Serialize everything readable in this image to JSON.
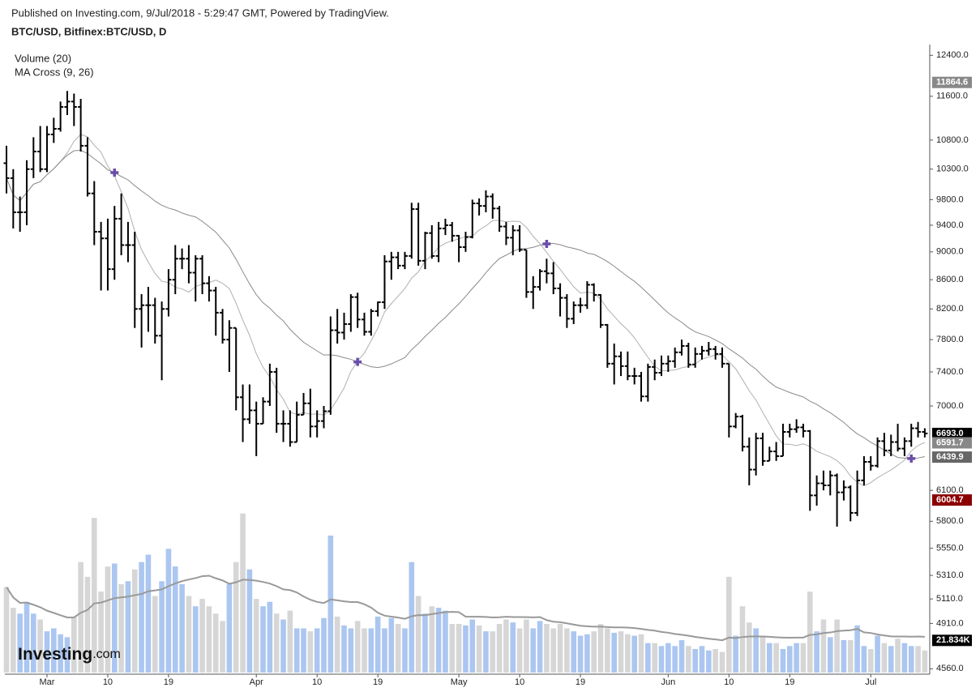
{
  "header": {
    "published": "Published on Investing.com, 9/Jul/2018 - 5:29:47 GMT, Powered by TradingView.",
    "symbol": "BTC/USD, Bitfinex:BTC/USD, D"
  },
  "logo": {
    "main": "Investing",
    "suffix": ".com"
  },
  "chart_data": {
    "type": "ohlc",
    "indicators": [
      "Volume (20)",
      "MA Cross (9, 26)"
    ],
    "log_scale": true,
    "ylim": [
      4520,
      12620
    ],
    "yticks": [
      {
        "value": 12400,
        "label": "12400.0"
      },
      {
        "value": 11600,
        "label": "11600.0"
      },
      {
        "value": 10800,
        "label": "10800.0"
      },
      {
        "value": 10300,
        "label": "10300.0"
      },
      {
        "value": 9800,
        "label": "9800.0"
      },
      {
        "value": 9400,
        "label": "9400.0"
      },
      {
        "value": 9000,
        "label": "9000.0"
      },
      {
        "value": 8600,
        "label": "8600.0"
      },
      {
        "value": 8200,
        "label": "8200.0"
      },
      {
        "value": 7800,
        "label": "7800.0"
      },
      {
        "value": 7400,
        "label": "7400.0"
      },
      {
        "value": 7000,
        "label": "7000.0"
      },
      {
        "value": 6100,
        "label": "6100.0"
      },
      {
        "value": 5800,
        "label": "5800.0"
      },
      {
        "value": 5550,
        "label": "5550.0"
      },
      {
        "value": 5310,
        "label": "5310.0"
      },
      {
        "value": 5110,
        "label": "5110.0"
      },
      {
        "value": 4910,
        "label": "4910.0"
      },
      {
        "value": 4560,
        "label": "4560.0"
      }
    ],
    "vlim": [
      0,
      110000
    ],
    "price_labels": [
      {
        "value": 11864.6,
        "label": "11864.6",
        "color": "#888888"
      },
      {
        "value": 6693.0,
        "label": "6693.0",
        "color": "#000000"
      },
      {
        "value": 6591.7,
        "label": "6591.7",
        "color": "#888888"
      },
      {
        "value": 6439.9,
        "label": "6439.9",
        "color": "#666666"
      },
      {
        "value": 6004.7,
        "label": "6004.7",
        "color": "#8b0000"
      }
    ],
    "volume_label": {
      "value": 21834,
      "label": "21.834K",
      "color": "#000000"
    },
    "ma_periods": [
      9,
      26
    ],
    "volume_ma_period": 20,
    "bar_color": "#000000",
    "ma_color": "#999999",
    "cross_color": "#6a4ea8",
    "up_volume_color": "#abc6f0",
    "down_volume_color": "#d6d6d6",
    "categories": [
      null,
      null,
      null,
      null,
      null,
      null,
      "Mar",
      null,
      null,
      null,
      null,
      null,
      null,
      null,
      null,
      "10",
      null,
      null,
      null,
      null,
      null,
      null,
      null,
      null,
      "19",
      null,
      null,
      null,
      null,
      null,
      null,
      null,
      null,
      null,
      null,
      null,
      null,
      "Apr",
      null,
      null,
      null,
      null,
      null,
      null,
      null,
      null,
      "10",
      null,
      null,
      null,
      null,
      null,
      null,
      null,
      null,
      "19",
      null,
      null,
      null,
      null,
      null,
      null,
      null,
      null,
      null,
      null,
      null,
      "May",
      null,
      null,
      null,
      null,
      null,
      null,
      null,
      null,
      "10",
      null,
      null,
      null,
      null,
      null,
      null,
      null,
      null,
      "19",
      null,
      null,
      null,
      null,
      null,
      null,
      null,
      null,
      null,
      null,
      null,
      null,
      "Jun",
      null,
      null,
      null,
      null,
      null,
      null,
      null,
      null,
      "10",
      null,
      null,
      null,
      null,
      null,
      null,
      null,
      null,
      "19",
      null,
      null,
      null,
      null,
      null,
      null,
      null,
      null,
      null,
      null,
      null,
      "Jul",
      null,
      null,
      null,
      null,
      null,
      null,
      null,
      null
    ],
    "open": [
      10400,
      10150,
      9600,
      9600,
      10300,
      10600,
      10300,
      10900,
      11000,
      11400,
      11500,
      11400,
      10700,
      9900,
      9300,
      9200,
      8750,
      9500,
      9100,
      9100,
      8200,
      8250,
      8250,
      7850,
      8200,
      8600,
      8900,
      8900,
      8700,
      8900,
      8550,
      8450,
      8150,
      7800,
      7950,
      7100,
      6850,
      6950,
      6800,
      7050,
      7400,
      6800,
      6800,
      6600,
      6900,
      7030,
      6770,
      6830,
      6940,
      7920,
      7890,
      8000,
      8360,
      8060,
      7900,
      8170,
      8290,
      8860,
      8920,
      8800,
      8940,
      9650,
      8870,
      9280,
      8940,
      9350,
      9400,
      9240,
      9070,
      9220,
      9740,
      9700,
      9850,
      9660,
      9380,
      9210,
      9320,
      9030,
      8430,
      8500,
      8720,
      8690,
      8480,
      8350,
      8070,
      8250,
      8250,
      8530,
      8390,
      7990,
      7500,
      7590,
      7470,
      7350,
      7350,
      7110,
      7460,
      7390,
      7500,
      7530,
      7640,
      7720,
      7490,
      7620,
      7660,
      7680,
      7620,
      7500,
      6770,
      6880,
      6550,
      6310,
      6640,
      6400,
      6500,
      6450,
      6710,
      6740,
      6760,
      6720,
      6050,
      6170,
      6150,
      6250,
      6080,
      6130,
      5880,
      6200,
      6390,
      6350,
      6610,
      6510,
      6600,
      6530,
      6610,
      6750,
      6710
    ],
    "high": [
      10700,
      10300,
      9850,
      10450,
      10850,
      11050,
      11050,
      11200,
      11500,
      11700,
      11650,
      11550,
      10850,
      10100,
      9450,
      9500,
      9700,
      9900,
      9450,
      9300,
      8400,
      8500,
      8350,
      8300,
      8750,
      9100,
      9050,
      9100,
      8950,
      8950,
      8650,
      8500,
      8200,
      8050,
      7950,
      7250,
      7250,
      7050,
      7100,
      7500,
      7450,
      6950,
      6950,
      7050,
      7150,
      7200,
      6950,
      7000,
      8100,
      8200,
      8150,
      8400,
      8420,
      8150,
      8200,
      8300,
      8950,
      9000,
      9000,
      9000,
      9750,
      9750,
      9300,
      9400,
      9450,
      9500,
      9450,
      9250,
      9300,
      9800,
      9820,
      9950,
      9900,
      9700,
      9450,
      9400,
      9400,
      9030,
      8650,
      8750,
      8900,
      8850,
      8550,
      8400,
      8300,
      8350,
      8580,
      8550,
      8400,
      8000,
      7750,
      7650,
      7650,
      7450,
      7400,
      7500,
      7550,
      7600,
      7600,
      7700,
      7800,
      7760,
      7700,
      7720,
      7770,
      7720,
      7700,
      7500,
      6920,
      6900,
      6650,
      6700,
      6700,
      6550,
      6600,
      6800,
      6800,
      6850,
      6800,
      6730,
      6250,
      6300,
      6300,
      6270,
      6200,
      6150,
      6300,
      6450,
      6450,
      6650,
      6700,
      6680,
      6800,
      6650,
      6800,
      6820,
      6750
    ],
    "low": [
      9900,
      9350,
      9300,
      9400,
      10150,
      10250,
      10250,
      10750,
      10950,
      11250,
      11050,
      10600,
      9850,
      9100,
      8450,
      8450,
      8600,
      8950,
      8850,
      7950,
      7700,
      7900,
      7750,
      7300,
      8100,
      8400,
      8750,
      8550,
      8300,
      8400,
      8300,
      7850,
      7750,
      7400,
      6950,
      6600,
      6800,
      6450,
      6800,
      7000,
      6700,
      6600,
      6550,
      6600,
      6900,
      6650,
      6650,
      6750,
      6900,
      7750,
      7800,
      7900,
      7950,
      7850,
      7850,
      8100,
      8200,
      8600,
      8750,
      8750,
      8900,
      8800,
      8750,
      8900,
      8850,
      9250,
      9150,
      8850,
      9000,
      9200,
      9550,
      9600,
      9500,
      9300,
      9100,
      8950,
      9000,
      8350,
      8200,
      8450,
      8550,
      8400,
      8100,
      7950,
      8000,
      8150,
      8200,
      8300,
      7950,
      7450,
      7250,
      7350,
      7300,
      7250,
      7050,
      7050,
      7300,
      7350,
      7400,
      7450,
      7600,
      7450,
      7450,
      7550,
      7600,
      7550,
      7450,
      6650,
      6750,
      6500,
      6150,
      6250,
      6350,
      6400,
      6400,
      6450,
      6650,
      6700,
      6650,
      5900,
      5950,
      6100,
      6050,
      5750,
      6000,
      5800,
      5850,
      6150,
      6300,
      6330,
      6450,
      6450,
      6500,
      6450,
      6550,
      6650,
      6650
    ],
    "close": [
      10150,
      9600,
      9600,
      10300,
      10600,
      10300,
      10900,
      11000,
      11400,
      11500,
      11400,
      10700,
      9900,
      9300,
      9200,
      8750,
      9500,
      9100,
      9100,
      8200,
      8250,
      8250,
      7850,
      8200,
      8600,
      8900,
      8900,
      8700,
      8900,
      8550,
      8450,
      8150,
      7800,
      7950,
      7100,
      6850,
      6950,
      6800,
      7050,
      7400,
      6800,
      6800,
      6600,
      6900,
      7030,
      6770,
      6830,
      6940,
      7920,
      7890,
      8000,
      8360,
      8060,
      7900,
      8170,
      8290,
      8860,
      8920,
      8800,
      8940,
      9650,
      8870,
      9280,
      8940,
      9350,
      9400,
      9240,
      9070,
      9220,
      9740,
      9700,
      9850,
      9660,
      9380,
      9210,
      9320,
      9030,
      8430,
      8500,
      8720,
      8690,
      8480,
      8350,
      8070,
      8250,
      8250,
      8530,
      8390,
      7990,
      7500,
      7590,
      7470,
      7350,
      7350,
      7110,
      7460,
      7390,
      7500,
      7530,
      7640,
      7720,
      7490,
      7620,
      7660,
      7680,
      7620,
      7500,
      6770,
      6880,
      6550,
      6310,
      6640,
      6400,
      6500,
      6450,
      6710,
      6740,
      6760,
      6720,
      6050,
      6170,
      6150,
      6250,
      6080,
      6130,
      5880,
      6200,
      6390,
      6350,
      6610,
      6510,
      6600,
      6530,
      6610,
      6750,
      6710,
      6693
    ],
    "volume": [
      58000,
      44000,
      40000,
      48000,
      40000,
      36000,
      28000,
      30000,
      26000,
      24000,
      38000,
      75000,
      65000,
      105000,
      55000,
      72000,
      74000,
      60000,
      62000,
      70000,
      75000,
      80000,
      52000,
      62000,
      84000,
      72000,
      60000,
      52000,
      45000,
      50000,
      45000,
      40000,
      35000,
      60000,
      75000,
      108000,
      70000,
      50000,
      45000,
      48000,
      40000,
      36000,
      42000,
      30000,
      30000,
      28000,
      30000,
      37000,
      93000,
      38000,
      32000,
      30000,
      35000,
      30000,
      30000,
      38000,
      30000,
      37000,
      33000,
      30000,
      75000,
      52000,
      40000,
      45000,
      44000,
      42000,
      33000,
      33000,
      32000,
      36000,
      32000,
      28000,
      28000,
      33000,
      36000,
      34000,
      30000,
      36000,
      30000,
      35000,
      33000,
      30000,
      33000,
      30000,
      28000,
      25000,
      26000,
      28000,
      33000,
      30000,
      27000,
      28000,
      26000,
      25000,
      26000,
      20000,
      20000,
      18000,
      20000,
      18000,
      22000,
      18000,
      16000,
      18000,
      15000,
      16000,
      14000,
      65000,
      25000,
      45000,
      34000,
      30000,
      25000,
      20000,
      20000,
      16000,
      18000,
      20000,
      20000,
      55000,
      28000,
      36000,
      24000,
      36000,
      22000,
      22000,
      32000,
      18000,
      16000,
      25000,
      20000,
      18000,
      23000,
      20000,
      18000,
      18000,
      15000
    ]
  }
}
